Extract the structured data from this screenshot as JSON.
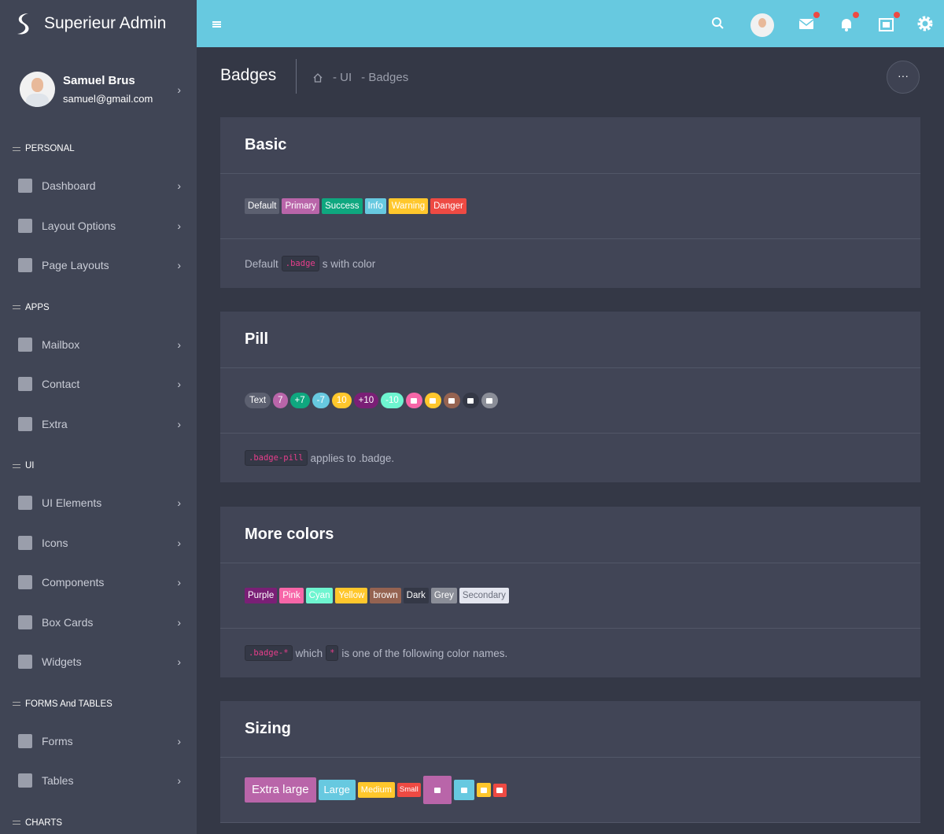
{
  "brand": "Superieur Admin",
  "user": {
    "name": "Samuel Brus",
    "email": "samuel@gmail.com"
  },
  "sidebar": [
    {
      "heading": "PERSONAL",
      "items": [
        "Dashboard",
        "Layout Options",
        "Page Layouts"
      ]
    },
    {
      "heading": "APPS",
      "items": [
        "Mailbox",
        "Contact",
        "Extra"
      ]
    },
    {
      "heading": "UI",
      "items": [
        "UI Elements",
        "Icons",
        "Components",
        "Box Cards",
        "Widgets"
      ]
    },
    {
      "heading": "FORMS And TABLES",
      "items": [
        "Forms",
        "Tables"
      ]
    },
    {
      "heading": "CHARTS",
      "items": []
    }
  ],
  "page": {
    "title": "Badges",
    "breadcrumb": [
      "- UI",
      "- Badges"
    ]
  },
  "cards": [
    {
      "title": "Basic",
      "badges": [
        "Default",
        "Primary",
        "Success",
        "Info",
        "Warning",
        "Danger"
      ],
      "footer": [
        {
          "text": "Default"
        },
        {
          "code": ".badge"
        },
        {
          "text": "s with color"
        }
      ]
    },
    {
      "title": "Pill",
      "badges": [
        "Text",
        "7",
        "+7",
        "-7",
        "10",
        "+10",
        "-10"
      ],
      "footer": [
        {
          "code": ".badge-pill"
        },
        {
          "text": "applies to .badge."
        }
      ]
    },
    {
      "title": "More colors",
      "badges": [
        "Purple",
        "Pink",
        "Cyan",
        "Yellow",
        "brown",
        "Dark",
        "Grey",
        "Secondary"
      ],
      "footer": [
        {
          "code": ".badge-*"
        },
        {
          "text": "which"
        },
        {
          "code": "*"
        },
        {
          "text": "is one of the following color names."
        }
      ]
    },
    {
      "title": "Sizing",
      "badges": [
        "Extra large",
        "Large",
        "Medium",
        "Small"
      ],
      "footer": []
    }
  ]
}
